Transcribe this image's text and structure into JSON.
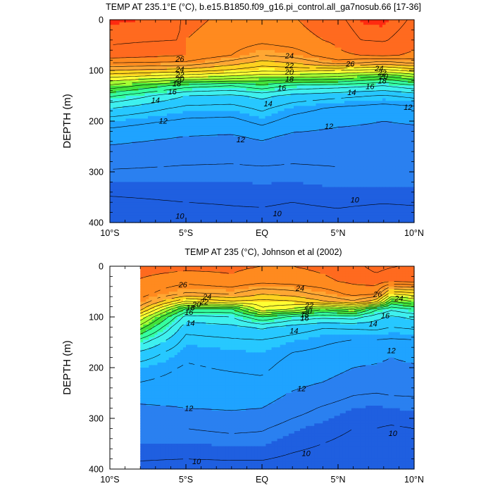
{
  "palette": [
    "#1f5fe0",
    "#2a80f0",
    "#1fa3ff",
    "#27c8ff",
    "#3ef0ef",
    "#35ff9f",
    "#43e23a",
    "#a6ff33",
    "#ffff33",
    "#ffd21f",
    "#ffa733",
    "#ff8a1f",
    "#ff6a1f",
    "#ff2a10"
  ],
  "chart_data": [
    {
      "type": "contour",
      "title": "TEMP AT 235.1°E (°C), b.e15.B1850.f09_g16.pi_control.all_ga7nosub.66 [17-36]",
      "ylabel": "DEPTH (m)",
      "xlabel": "",
      "xlim": [
        -10,
        10
      ],
      "ylim": [
        400,
        0
      ],
      "xticks": [
        "10°S",
        "5°S",
        "EQ",
        "5°N",
        "10°N"
      ],
      "yticks": [
        "0",
        "100",
        "200",
        "300",
        "400"
      ],
      "data_xlim": [
        -10,
        10
      ],
      "contour_levels": [
        9,
        10,
        11,
        12,
        13,
        14,
        15,
        16,
        17,
        18,
        19,
        20,
        21,
        22,
        23,
        24,
        25,
        26,
        27,
        28
      ],
      "contour_labels": [
        {
          "text": "26",
          "x": -5.4,
          "y": 77
        },
        {
          "text": "24",
          "x": -5.4,
          "y": 97
        },
        {
          "text": "22",
          "x": -5.4,
          "y": 108
        },
        {
          "text": "20",
          "x": -5.4,
          "y": 117
        },
        {
          "text": "18",
          "x": -5.6,
          "y": 126
        },
        {
          "text": "16",
          "x": -5.9,
          "y": 142
        },
        {
          "text": "14",
          "x": -7.0,
          "y": 158
        },
        {
          "text": "12",
          "x": -6.5,
          "y": 199
        },
        {
          "text": "24",
          "x": 1.8,
          "y": 71
        },
        {
          "text": "22",
          "x": 1.8,
          "y": 90
        },
        {
          "text": "20",
          "x": 1.8,
          "y": 103
        },
        {
          "text": "18",
          "x": 1.8,
          "y": 117
        },
        {
          "text": "16",
          "x": 1.3,
          "y": 134
        },
        {
          "text": "14",
          "x": 0.4,
          "y": 165
        },
        {
          "text": "12",
          "x": -1.4,
          "y": 236
        },
        {
          "text": "12",
          "x": 4.4,
          "y": 210
        },
        {
          "text": "26",
          "x": 5.8,
          "y": 87
        },
        {
          "text": "24",
          "x": 7.7,
          "y": 96
        },
        {
          "text": "22",
          "x": 7.9,
          "y": 104
        },
        {
          "text": "20",
          "x": 8.0,
          "y": 111
        },
        {
          "text": "18",
          "x": 7.9,
          "y": 120
        },
        {
          "text": "16",
          "x": 7.1,
          "y": 131
        },
        {
          "text": "14",
          "x": 5.9,
          "y": 143
        },
        {
          "text": "12",
          "x": 9.6,
          "y": 172
        },
        {
          "text": "10",
          "x": -5.4,
          "y": 387
        },
        {
          "text": "10",
          "x": 1.0,
          "y": 382
        },
        {
          "text": "10",
          "x": 6.1,
          "y": 355
        }
      ],
      "profiles": [
        {
          "depth": 0,
          "x": [
            -10,
            -5.5,
            -5,
            -2,
            0,
            2,
            5,
            6.5,
            8,
            10
          ],
          "temp": [
            28.6,
            28.4,
            27.2,
            26.8,
            26.6,
            26.9,
            27.7,
            28.6,
            28.7,
            27.8
          ]
        },
        {
          "depth": 40,
          "x": [
            -10,
            -5.5,
            -5,
            -2,
            0,
            2,
            5,
            6.5,
            8,
            10
          ],
          "temp": [
            28.2,
            28.0,
            27.0,
            26.6,
            26.3,
            26.6,
            27.2,
            28.0,
            28.1,
            27.4
          ]
        },
        {
          "depth": 70,
          "x": [
            -10,
            -5,
            -2,
            0,
            2,
            5,
            8,
            10
          ],
          "temp": [
            27.6,
            27.0,
            26.0,
            25.0,
            25.4,
            26.8,
            27.2,
            26.8
          ]
        },
        {
          "depth": 85,
          "x": [
            -10,
            -5,
            -2,
            0,
            2,
            5,
            8,
            10
          ],
          "temp": [
            26.0,
            25.8,
            24.5,
            23.6,
            24.0,
            25.5,
            24.5,
            25.2
          ]
        },
        {
          "depth": 100,
          "x": [
            -10,
            -5,
            -2,
            0,
            2,
            5,
            8,
            10
          ],
          "temp": [
            24.0,
            23.5,
            22.8,
            22.2,
            22.3,
            22.0,
            21.6,
            22.4
          ]
        },
        {
          "depth": 115,
          "x": [
            -10,
            -5,
            -2,
            0,
            2,
            5,
            8,
            10
          ],
          "temp": [
            21.8,
            20.8,
            20.3,
            19.8,
            19.8,
            19.5,
            18.3,
            19.6
          ]
        },
        {
          "depth": 130,
          "x": [
            -10,
            -5,
            -2,
            0,
            2,
            5,
            8,
            10
          ],
          "temp": [
            19.8,
            17.5,
            17.0,
            17.8,
            16.8,
            16.5,
            16.0,
            16.8
          ]
        },
        {
          "depth": 150,
          "x": [
            -10,
            -5,
            -2,
            0,
            2,
            5,
            8,
            10
          ],
          "temp": [
            17.2,
            15.0,
            14.8,
            15.3,
            14.7,
            14.3,
            13.9,
            14.3
          ]
        },
        {
          "depth": 175,
          "x": [
            -10,
            -5,
            -2,
            0,
            2,
            5,
            8,
            10
          ],
          "temp": [
            15.0,
            13.7,
            13.6,
            14.2,
            13.4,
            12.8,
            12.5,
            12.7
          ]
        },
        {
          "depth": 200,
          "x": [
            -10,
            -5,
            -2,
            0,
            2,
            5,
            8,
            10
          ],
          "temp": [
            13.5,
            12.8,
            12.7,
            13.3,
            12.6,
            12.2,
            12.0,
            12.1
          ]
        },
        {
          "depth": 230,
          "x": [
            -10,
            -5,
            -2,
            0,
            2,
            5,
            8,
            10
          ],
          "temp": [
            12.4,
            12.0,
            11.9,
            12.2,
            11.8,
            11.7,
            11.7,
            11.7
          ]
        },
        {
          "depth": 260,
          "x": [
            -10,
            -5,
            -2,
            0,
            2,
            5,
            8,
            10
          ],
          "temp": [
            11.7,
            11.4,
            11.3,
            11.5,
            11.3,
            11.3,
            11.3,
            11.3
          ]
        },
        {
          "depth": 300,
          "x": [
            -10,
            -5,
            -2,
            0,
            2,
            5,
            8,
            10
          ],
          "temp": [
            10.9,
            10.8,
            10.8,
            10.8,
            10.8,
            10.9,
            10.9,
            10.9
          ]
        },
        {
          "depth": 340,
          "x": [
            -10,
            -5,
            -2,
            0,
            2,
            5,
            8,
            10
          ],
          "temp": [
            10.1,
            10.2,
            10.2,
            10.3,
            10.2,
            10.4,
            10.4,
            10.4
          ]
        },
        {
          "depth": 380,
          "x": [
            -10,
            -5,
            -2,
            0,
            2,
            5,
            8,
            10
          ],
          "temp": [
            9.6,
            9.8,
            9.9,
            9.9,
            9.8,
            9.9,
            9.7,
            9.8
          ]
        },
        {
          "depth": 400,
          "x": [
            -10,
            -5,
            -2,
            0,
            2,
            5,
            8,
            10
          ],
          "temp": [
            9.4,
            9.6,
            9.7,
            9.7,
            9.6,
            9.7,
            9.5,
            9.6
          ]
        }
      ]
    },
    {
      "type": "contour",
      "title": "TEMP AT 235 (°C), Johnson et al (2002)",
      "ylabel": "DEPTH (m)",
      "xlabel": "",
      "xlim": [
        -10,
        10
      ],
      "ylim": [
        400,
        0
      ],
      "xticks": [
        "10°S",
        "5°S",
        "EQ",
        "5°N",
        "10°N"
      ],
      "yticks": [
        "0",
        "100",
        "200",
        "300",
        "400"
      ],
      "data_xlim": [
        -8,
        10
      ],
      "contour_levels": [
        9,
        10,
        11,
        12,
        13,
        14,
        15,
        16,
        17,
        18,
        19,
        20,
        21,
        22,
        23,
        24,
        25,
        26,
        27,
        28
      ],
      "contour_labels": [
        {
          "text": "26",
          "x": -5.2,
          "y": 36
        },
        {
          "text": "24",
          "x": -3.6,
          "y": 60
        },
        {
          "text": "22",
          "x": -3.8,
          "y": 70
        },
        {
          "text": "20",
          "x": -4.3,
          "y": 75
        },
        {
          "text": "18",
          "x": -4.7,
          "y": 81
        },
        {
          "text": "16",
          "x": -4.8,
          "y": 90
        },
        {
          "text": "14",
          "x": -4.7,
          "y": 112
        },
        {
          "text": "24",
          "x": 2.5,
          "y": 43
        },
        {
          "text": "22",
          "x": 3.1,
          "y": 77
        },
        {
          "text": "20",
          "x": 3.0,
          "y": 88
        },
        {
          "text": "18",
          "x": 2.8,
          "y": 95
        },
        {
          "text": "16",
          "x": 2.8,
          "y": 102
        },
        {
          "text": "14",
          "x": 2.1,
          "y": 127
        },
        {
          "text": "26",
          "x": 7.6,
          "y": 55
        },
        {
          "text": "24",
          "x": 9.0,
          "y": 63
        },
        {
          "text": "16",
          "x": 8.1,
          "y": 97
        },
        {
          "text": "14",
          "x": 7.3,
          "y": 113
        },
        {
          "text": "12",
          "x": 8.5,
          "y": 166
        },
        {
          "text": "12",
          "x": 2.6,
          "y": 241
        },
        {
          "text": "12",
          "x": -4.8,
          "y": 280
        },
        {
          "text": "10",
          "x": -4.3,
          "y": 385
        },
        {
          "text": "10",
          "x": 2.9,
          "y": 369
        },
        {
          "text": "10",
          "x": 8.6,
          "y": 329
        }
      ],
      "profiles": [
        {
          "depth": 0,
          "x": [
            -8,
            -5,
            -2,
            0,
            2,
            4,
            6,
            7.5,
            8.5,
            10
          ],
          "temp": [
            27.4,
            27.3,
            27.2,
            27.0,
            27.0,
            27.2,
            27.6,
            28.4,
            28.1,
            27.8
          ]
        },
        {
          "depth": 30,
          "x": [
            -8,
            -5,
            -2,
            0,
            2,
            4,
            6,
            7.5,
            8.5,
            10
          ],
          "temp": [
            26.9,
            26.3,
            26.8,
            26.3,
            26.5,
            26.8,
            27.2,
            27.5,
            27.0,
            27.2
          ]
        },
        {
          "depth": 55,
          "x": [
            -8,
            -5,
            -2,
            0,
            2,
            4,
            6,
            7.5,
            8.5,
            10
          ],
          "temp": [
            26.4,
            24.8,
            25.0,
            24.0,
            24.4,
            25.3,
            26.3,
            26.0,
            22.0,
            22.5
          ]
        },
        {
          "depth": 70,
          "x": [
            -8,
            -5,
            -2,
            0,
            2,
            4,
            6,
            7.5,
            8.5,
            10
          ],
          "temp": [
            25.8,
            21.8,
            22.8,
            22.6,
            22.8,
            23.8,
            24.8,
            23.2,
            18.8,
            20.0
          ]
        },
        {
          "depth": 85,
          "x": [
            -8,
            -5,
            -2,
            0,
            2,
            4,
            6,
            7.5,
            8.5,
            10
          ],
          "temp": [
            24.3,
            17.8,
            17.8,
            21.8,
            20.8,
            19.0,
            20.3,
            17.2,
            16.2,
            17.0
          ]
        },
        {
          "depth": 100,
          "x": [
            -8,
            -5,
            -2,
            0,
            2,
            4,
            6,
            7.5,
            8.5,
            10
          ],
          "temp": [
            21.8,
            15.6,
            16.0,
            18.0,
            16.7,
            16.3,
            16.5,
            15.4,
            14.8,
            15.3
          ]
        },
        {
          "depth": 120,
          "x": [
            -8,
            -5,
            -2,
            0,
            2,
            4,
            6,
            7.5,
            8.5,
            10
          ],
          "temp": [
            19.5,
            14.4,
            14.7,
            15.2,
            14.6,
            14.1,
            14.2,
            14.3,
            14.0,
            14.2
          ]
        },
        {
          "depth": 145,
          "x": [
            -8,
            -5,
            -2,
            0,
            2,
            4,
            6,
            7.5,
            8.5,
            10
          ],
          "temp": [
            16.8,
            13.7,
            13.9,
            14.0,
            13.6,
            13.2,
            13.0,
            13.0,
            12.9,
            13.0
          ]
        },
        {
          "depth": 170,
          "x": [
            -8,
            -5,
            -2,
            0,
            2,
            4,
            6,
            7.5,
            8.5,
            10
          ],
          "temp": [
            14.8,
            13.2,
            13.4,
            13.5,
            13.0,
            12.8,
            12.4,
            12.3,
            12.1,
            12.3
          ]
        },
        {
          "depth": 200,
          "x": [
            -8,
            -5,
            -2,
            0,
            2,
            4,
            6,
            7.5,
            8.5,
            10
          ],
          "temp": [
            13.5,
            12.9,
            13.1,
            13.2,
            12.6,
            12.5,
            12.0,
            11.9,
            11.8,
            11.9
          ]
        },
        {
          "depth": 240,
          "x": [
            -8,
            -5,
            -2,
            0,
            2,
            4,
            6,
            7.5,
            8.5,
            10
          ],
          "temp": [
            12.8,
            12.6,
            12.6,
            12.7,
            12.1,
            11.8,
            11.3,
            11.2,
            11.3,
            11.3
          ]
        },
        {
          "depth": 280,
          "x": [
            -8,
            -5,
            -2,
            0,
            2,
            4,
            6,
            7.5,
            8.5,
            10
          ],
          "temp": [
            11.8,
            12.0,
            12.1,
            12.0,
            11.4,
            10.9,
            10.5,
            10.4,
            10.5,
            10.6
          ]
        },
        {
          "depth": 320,
          "x": [
            -8,
            -5,
            -2,
            0,
            2,
            4,
            6,
            7.5,
            8.5,
            10
          ],
          "temp": [
            11.0,
            11.0,
            11.2,
            11.1,
            10.6,
            10.3,
            10.0,
            10.0,
            9.9,
            10.0
          ]
        },
        {
          "depth": 360,
          "x": [
            -8,
            -5,
            -2,
            0,
            2,
            4,
            6,
            7.5,
            8.5,
            10
          ],
          "temp": [
            10.3,
            10.3,
            10.4,
            10.4,
            10.1,
            9.9,
            9.7,
            9.7,
            9.6,
            9.7
          ]
        },
        {
          "depth": 400,
          "x": [
            -8,
            -5,
            -2,
            0,
            2,
            4,
            6,
            7.5,
            8.5,
            10
          ],
          "temp": [
            9.8,
            9.7,
            9.7,
            9.7,
            9.6,
            9.5,
            9.4,
            9.4,
            9.3,
            9.4
          ]
        }
      ]
    }
  ]
}
